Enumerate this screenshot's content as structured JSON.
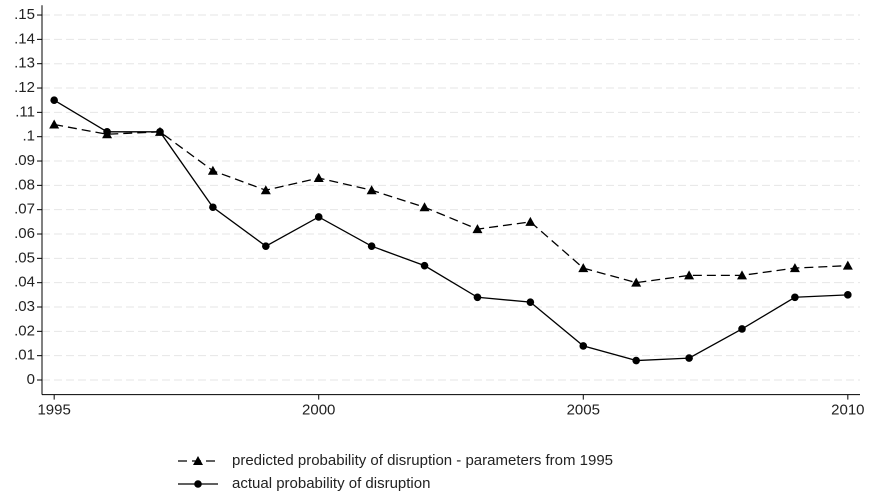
{
  "chart_data": {
    "type": "line",
    "x": [
      1995,
      1996,
      1997,
      1998,
      1999,
      2000,
      2001,
      2002,
      2003,
      2004,
      2005,
      2006,
      2007,
      2008,
      2009,
      2010
    ],
    "series": [
      {
        "name": "predicted probability of disruption - parameters from 1995",
        "color": "#000000",
        "dash": true,
        "marker": "triangle",
        "values": [
          0.105,
          0.101,
          0.102,
          0.086,
          0.078,
          0.083,
          0.078,
          0.071,
          0.062,
          0.065,
          0.046,
          0.04,
          0.043,
          0.043,
          0.046,
          0.047
        ]
      },
      {
        "name": "actual probability of disruption",
        "color": "#000000",
        "dash": false,
        "marker": "circle",
        "values": [
          0.115,
          0.102,
          0.102,
          0.071,
          0.055,
          0.067,
          0.055,
          0.047,
          0.034,
          0.032,
          0.014,
          0.008,
          0.009,
          0.021,
          0.034,
          0.035
        ]
      }
    ],
    "xlim": [
      1994.77,
      2010.23
    ],
    "xticks": [
      1995,
      2000,
      2005,
      2010
    ],
    "ylim": [
      -0.006,
      0.154
    ],
    "yticks": [
      0,
      {
        "value": 0.01,
        "label": ".01"
      },
      {
        "value": 0.02,
        "label": ".02"
      },
      {
        "value": 0.03,
        "label": ".03"
      },
      {
        "value": 0.04,
        "label": ".04"
      },
      {
        "value": 0.05,
        "label": ".05"
      },
      {
        "value": 0.06,
        "label": ".06"
      },
      {
        "value": 0.07,
        "label": ".07"
      },
      {
        "value": 0.08,
        "label": ".08"
      },
      {
        "value": 0.09,
        "label": ".09"
      },
      {
        "value": 0.1,
        "label": ".1"
      },
      {
        "value": 0.11,
        "label": ".11"
      },
      {
        "value": 0.12,
        "label": ".12"
      },
      {
        "value": 0.13,
        "label": ".13"
      },
      {
        "value": 0.14,
        "label": ".14"
      },
      {
        "value": 0.15,
        "label": ".15"
      }
    ],
    "grid": true
  }
}
